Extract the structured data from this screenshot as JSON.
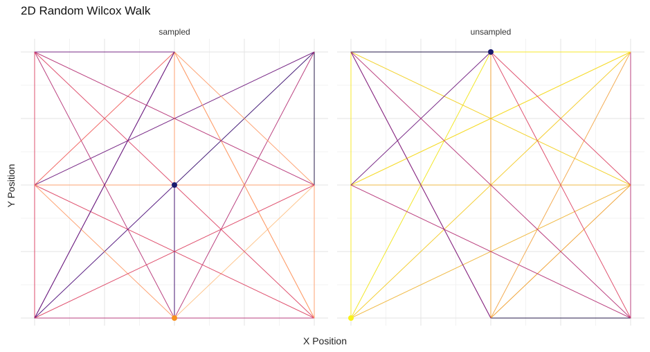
{
  "chart_data": {
    "type": "line",
    "title": "2D Random Wilcox Walk",
    "xlabel": "X Position",
    "ylabel": "Y Position",
    "grid": true,
    "xlim": [
      0,
      4
    ],
    "ylim": [
      0,
      4
    ],
    "facets": [
      {
        "name": "sampled",
        "segments": [
          {
            "from": [
              2,
              2
            ],
            "to": [
              4,
              4
            ],
            "color": "#3b0f70"
          },
          {
            "from": [
              4,
              4
            ],
            "to": [
              4,
              2
            ],
            "color": "#1a1042"
          },
          {
            "from": [
              4,
              2
            ],
            "to": [
              0,
              2
            ],
            "color": "#fe9f6d"
          },
          {
            "from": [
              0,
              2
            ],
            "to": [
              4,
              4
            ],
            "color": "#721f81"
          },
          {
            "from": [
              4,
              4
            ],
            "to": [
              2,
              0
            ],
            "color": "#b73779"
          },
          {
            "from": [
              2,
              0
            ],
            "to": [
              0,
              4
            ],
            "color": "#b73779"
          },
          {
            "from": [
              0,
              4
            ],
            "to": [
              2,
              4
            ],
            "color": "#721f81"
          },
          {
            "from": [
              2,
              4
            ],
            "to": [
              2,
              0
            ],
            "color": "#fe9f6d"
          },
          {
            "from": [
              2,
              0
            ],
            "to": [
              4,
              2
            ],
            "color": "#fec287"
          },
          {
            "from": [
              4,
              2
            ],
            "to": [
              4,
              0
            ],
            "color": "#fe9f6d"
          },
          {
            "from": [
              4,
              0
            ],
            "to": [
              0,
              4
            ],
            "color": "#de4968"
          },
          {
            "from": [
              0,
              4
            ],
            "to": [
              0,
              0
            ],
            "color": "#de4968"
          },
          {
            "from": [
              0,
              0
            ],
            "to": [
              4,
              0
            ],
            "color": "#b73779"
          },
          {
            "from": [
              4,
              0
            ],
            "to": [
              0,
              2
            ],
            "color": "#de4968"
          },
          {
            "from": [
              0,
              2
            ],
            "to": [
              2,
              4
            ],
            "color": "#f1605d"
          },
          {
            "from": [
              2,
              4
            ],
            "to": [
              4,
              0
            ],
            "color": "#fe9f6d"
          },
          {
            "from": [
              4,
              0
            ],
            "to": [
              2,
              4
            ],
            "color": "#fe9f6d"
          },
          {
            "from": [
              2,
              4
            ],
            "to": [
              0,
              0
            ],
            "color": "#51127c"
          },
          {
            "from": [
              0,
              0
            ],
            "to": [
              2,
              2
            ],
            "color": "#51127c"
          },
          {
            "from": [
              2,
              2
            ],
            "to": [
              2,
              0
            ],
            "color": "#3b0f70"
          },
          {
            "from": [
              2,
              0
            ],
            "to": [
              0,
              2
            ],
            "color": "#fe9f6d"
          },
          {
            "from": [
              0,
              2
            ],
            "to": [
              0,
              0
            ],
            "color": "#de4968"
          },
          {
            "from": [
              0,
              0
            ],
            "to": [
              4,
              2
            ],
            "color": "#de4968"
          },
          {
            "from": [
              4,
              2
            ],
            "to": [
              2,
              4
            ],
            "color": "#fe9f6d"
          },
          {
            "from": [
              0,
              0
            ],
            "to": [
              2,
              4
            ],
            "color": "#721f81"
          },
          {
            "from": [
              4,
              2
            ],
            "to": [
              0,
              4
            ],
            "color": "#b73779"
          }
        ],
        "points": [
          {
            "x": 2,
            "y": 2,
            "color": "#1a1a6e"
          },
          {
            "x": 2,
            "y": 0,
            "color": "#f7901e"
          }
        ]
      },
      {
        "name": "unsampled",
        "segments": [
          {
            "from": [
              0,
              0
            ],
            "to": [
              2,
              4
            ],
            "color": "#f2e61c"
          },
          {
            "from": [
              0,
              0
            ],
            "to": [
              4,
              4
            ],
            "color": "#f4cc2a"
          },
          {
            "from": [
              0,
              0
            ],
            "to": [
              4,
              2
            ],
            "color": "#f0b73c"
          },
          {
            "from": [
              0,
              0
            ],
            "to": [
              0,
              4
            ],
            "color": "#f9e820"
          },
          {
            "from": [
              0,
              4
            ],
            "to": [
              2,
              4
            ],
            "color": "#1a1042"
          },
          {
            "from": [
              2,
              4
            ],
            "to": [
              4,
              4
            ],
            "color": "#f9e820"
          },
          {
            "from": [
              4,
              4
            ],
            "to": [
              4,
              0
            ],
            "color": "#b73779"
          },
          {
            "from": [
              4,
              0
            ],
            "to": [
              2,
              0
            ],
            "color": "#1a1042"
          },
          {
            "from": [
              2,
              0
            ],
            "to": [
              0,
              4
            ],
            "color": "#721f81"
          },
          {
            "from": [
              0,
              4
            ],
            "to": [
              4,
              2
            ],
            "color": "#f2d023"
          },
          {
            "from": [
              4,
              2
            ],
            "to": [
              0,
              2
            ],
            "color": "#f0b73c"
          },
          {
            "from": [
              0,
              2
            ],
            "to": [
              4,
              4
            ],
            "color": "#f6dc30"
          },
          {
            "from": [
              4,
              4
            ],
            "to": [
              0,
              2
            ],
            "color": "#f6dc30"
          },
          {
            "from": [
              0,
              2
            ],
            "to": [
              2,
              4
            ],
            "color": "#721f81"
          },
          {
            "from": [
              2,
              4
            ],
            "to": [
              2,
              0
            ],
            "color": "#f0a030"
          },
          {
            "from": [
              2,
              0
            ],
            "to": [
              4,
              4
            ],
            "color": "#f3a84a"
          },
          {
            "from": [
              2,
              0
            ],
            "to": [
              4,
              2
            ],
            "color": "#f0a030"
          },
          {
            "from": [
              4,
              2
            ],
            "to": [
              2,
              4
            ],
            "color": "#de4968"
          },
          {
            "from": [
              2,
              4
            ],
            "to": [
              4,
              0
            ],
            "color": "#de4968"
          },
          {
            "from": [
              4,
              0
            ],
            "to": [
              0,
              2
            ],
            "color": "#b73779"
          },
          {
            "from": [
              0,
              4
            ],
            "to": [
              4,
              0
            ],
            "color": "#b73779"
          },
          {
            "from": [
              0,
              4
            ],
            "to": [
              2,
              0
            ],
            "color": "#8c2981"
          }
        ],
        "points": [
          {
            "x": 2,
            "y": 4,
            "color": "#1a1a6e"
          },
          {
            "x": 0,
            "y": 0,
            "color": "#f9f21a"
          }
        ]
      }
    ]
  }
}
